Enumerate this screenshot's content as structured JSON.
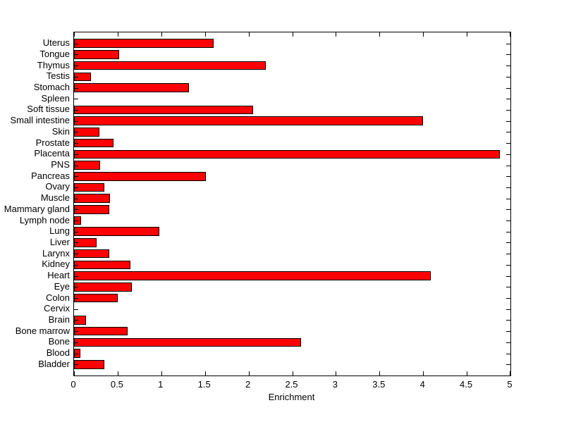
{
  "chart_data": {
    "type": "bar",
    "orientation": "horizontal",
    "title": "",
    "xlabel": "Enrichment",
    "ylabel": "",
    "xlim": [
      0,
      5
    ],
    "xticks": [
      0,
      0.5,
      1,
      1.5,
      2,
      2.5,
      3,
      3.5,
      4,
      4.5,
      5
    ],
    "xtick_labels": [
      "0",
      "0.5",
      "1",
      "1.5",
      "2",
      "2.5",
      "3",
      "3.5",
      "4",
      "4.5",
      "5"
    ],
    "grid": false,
    "legend": "none",
    "bar_color": "#ff0000",
    "bar_edge_color": "#000000",
    "axis_color": "#000000",
    "background_color": "#ffffff",
    "categories": [
      "Uterus",
      "Tongue",
      "Thymus",
      "Testis",
      "Stomach",
      "Spleen",
      "Soft tissue",
      "Small intestine",
      "Skin",
      "Prostate",
      "Placenta",
      "PNS",
      "Pancreas",
      "Ovary",
      "Muscle",
      "Mammary gland",
      "Lymph node",
      "Lung",
      "Liver",
      "Larynx",
      "Kidney",
      "Heart",
      "Eye",
      "Colon",
      "Cervix",
      "Brain",
      "Bone marrow",
      "Bone",
      "Blood",
      "Bladder"
    ],
    "values": [
      1.6,
      0.52,
      2.2,
      0.19,
      1.32,
      0,
      2.05,
      4.0,
      0.29,
      0.45,
      4.88,
      0.3,
      1.51,
      0.35,
      0.41,
      0.4,
      0.08,
      0.98,
      0.26,
      0.4,
      0.65,
      4.09,
      0.66,
      0.5,
      0,
      0.14,
      0.61,
      2.6,
      0.07,
      0.35
    ]
  }
}
